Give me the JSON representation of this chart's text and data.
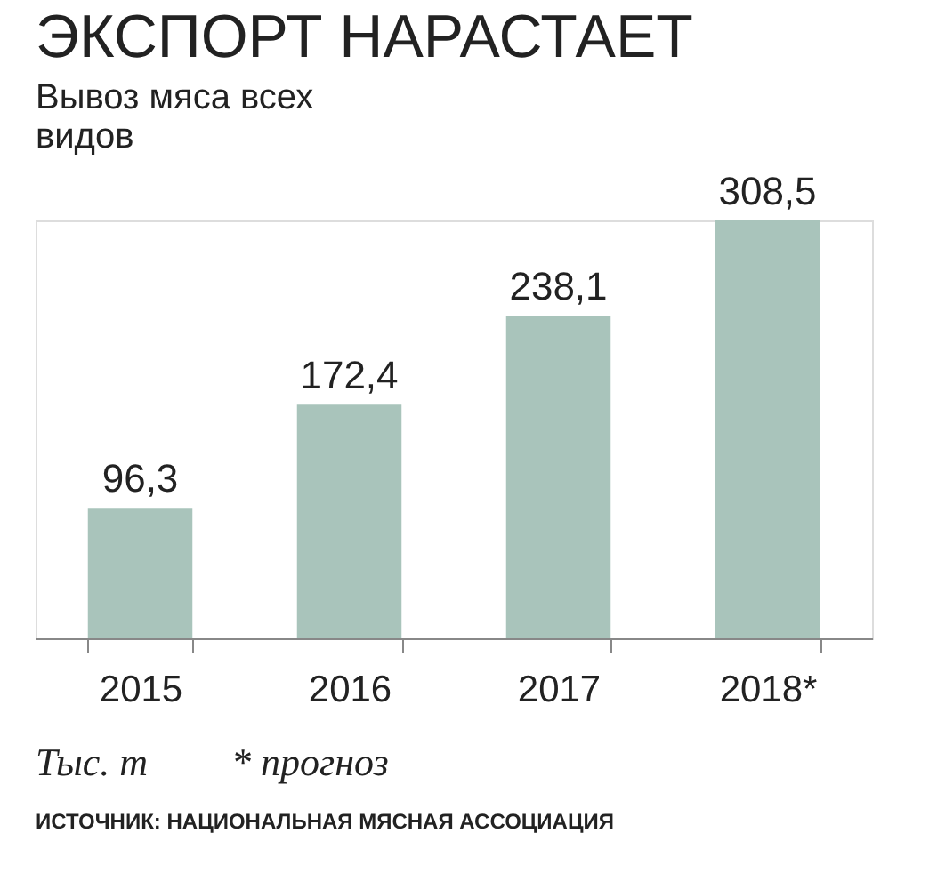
{
  "chart_data": {
    "type": "bar",
    "title": "ЭКСПОРТ НАРАСТАЕТ",
    "subtitle": "Вывоз мяса всех видов",
    "categories": [
      "2015",
      "2016",
      "2017",
      "2018*"
    ],
    "values": [
      96.3,
      172.4,
      238.1,
      308.5
    ],
    "value_labels": [
      "96,3",
      "172,4",
      "238,1",
      "308,5"
    ],
    "color": "#a9c4bb",
    "grid": false,
    "annotations": [
      "Тыс. т",
      "* прогноз",
      "ИСТОЧНИК: НАЦИОНАЛЬНАЯ МЯСНАЯ АССОЦИАЦИЯ"
    ]
  }
}
